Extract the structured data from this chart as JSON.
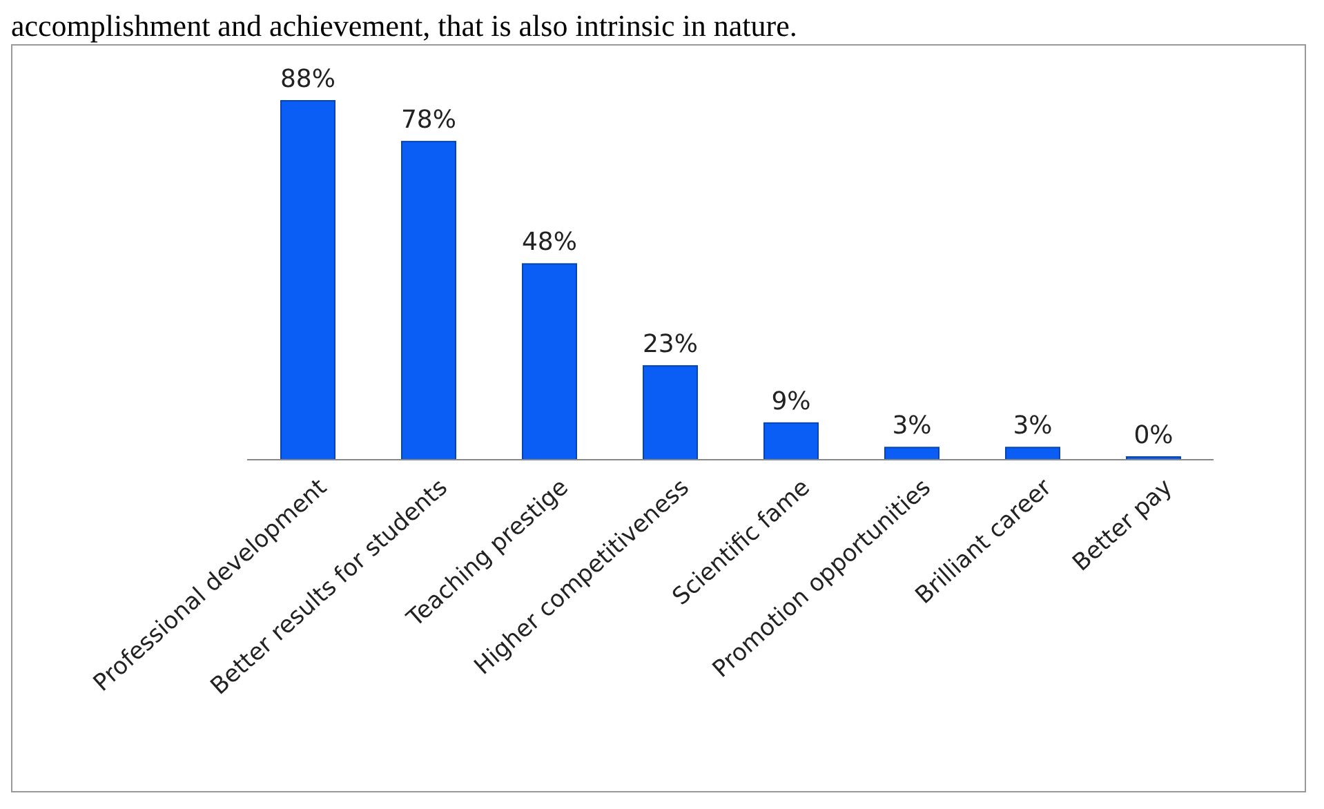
{
  "chart_data": {
    "type": "bar",
    "categories": [
      "Professional development",
      "Better results for students",
      "Teaching prestige",
      "Higher competitiveness",
      "Scientific fame",
      "Promotion opportunities",
      "Brilliant career",
      "Better pay"
    ],
    "values": [
      88,
      78,
      48,
      23,
      9,
      3,
      3,
      0
    ],
    "value_labels": [
      "88%",
      "78%",
      "48%",
      "23%",
      "9%",
      "3%",
      "3%",
      "0%"
    ],
    "color": "#0a5ef5",
    "annotations": [
      "accomplishment and achievement, that is also intrinsic in nature."
    ]
  }
}
